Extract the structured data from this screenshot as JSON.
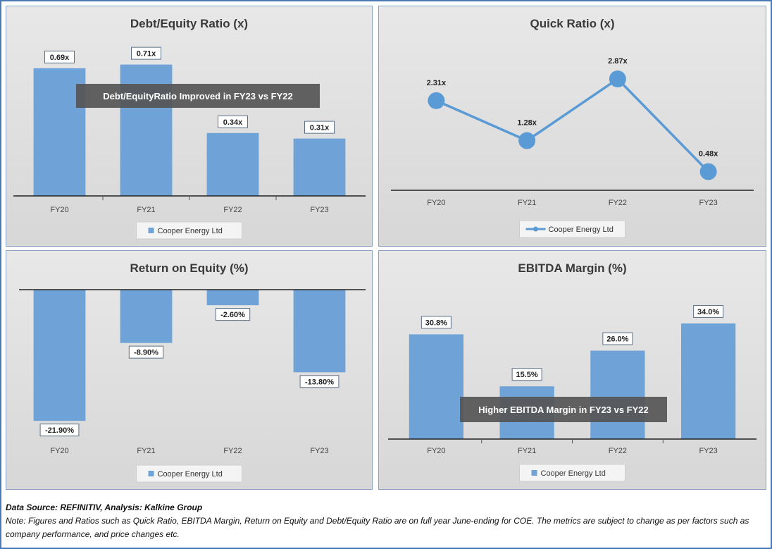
{
  "chart_data": [
    {
      "type": "bar",
      "title": "Debt/Equity Ratio (x)",
      "categories": [
        "FY20",
        "FY21",
        "FY22",
        "FY23"
      ],
      "series": [
        {
          "name": "Cooper Energy Ltd",
          "values": [
            0.69,
            0.71,
            0.34,
            0.31
          ]
        }
      ],
      "data_labels": [
        "0.69x",
        "0.71x",
        "0.34x",
        "0.31x"
      ],
      "ylim": [
        0,
        0.72
      ],
      "annotation": "Debt/EquityRatio Improved in FY23 vs FY22",
      "legend": "bottom",
      "grid": false
    },
    {
      "type": "line",
      "title": "Quick Ratio (x)",
      "categories": [
        "FY20",
        "FY21",
        "FY22",
        "FY23"
      ],
      "series": [
        {
          "name": "Cooper Energy Ltd",
          "values": [
            2.31,
            1.28,
            2.87,
            0.48
          ]
        }
      ],
      "data_labels": [
        "2.31x",
        "1.28x",
        "2.87x",
        "0.48x"
      ],
      "ylim": [
        0,
        3.0
      ],
      "legend": "bottom",
      "grid": false
    },
    {
      "type": "bar",
      "title": "Return on Equity (%)",
      "categories": [
        "FY20",
        "FY21",
        "FY22",
        "FY23"
      ],
      "series": [
        {
          "name": "Cooper Energy Ltd",
          "values": [
            -21.9,
            -8.9,
            -2.6,
            -13.8
          ]
        }
      ],
      "data_labels": [
        "-21.90%",
        "-8.90%",
        "-2.60%",
        "-13.80%"
      ],
      "ylim": [
        -22,
        0
      ],
      "legend": "bottom",
      "grid": false
    },
    {
      "type": "bar",
      "title": "EBITDA Margin (%)",
      "categories": [
        "FY20",
        "FY21",
        "FY22",
        "FY23"
      ],
      "series": [
        {
          "name": "Cooper Energy Ltd",
          "values": [
            30.8,
            15.5,
            26.0,
            34.0
          ]
        }
      ],
      "data_labels": [
        "30.8%",
        "15.5%",
        "26.0%",
        "34.0%"
      ],
      "ylim": [
        0,
        40
      ],
      "annotation": "Higher EBITDA Margin in FY23 vs FY22",
      "legend": "bottom",
      "grid": false
    }
  ],
  "colors": {
    "bar": "#6fa3d8",
    "line": "#5b9bd5",
    "axis": "#222222",
    "annotation_bg": "#555555"
  },
  "footer": {
    "source": "Data Source: REFINITIV, Analysis: Kalkine Group",
    "note": "Note: Figures and Ratios such as Quick Ratio, EBITDA Margin, Return on Equity and Debt/Equity Ratio are on full year June-ending for COE. The metrics are subject to change as per factors such as company performance, and price changes etc."
  }
}
